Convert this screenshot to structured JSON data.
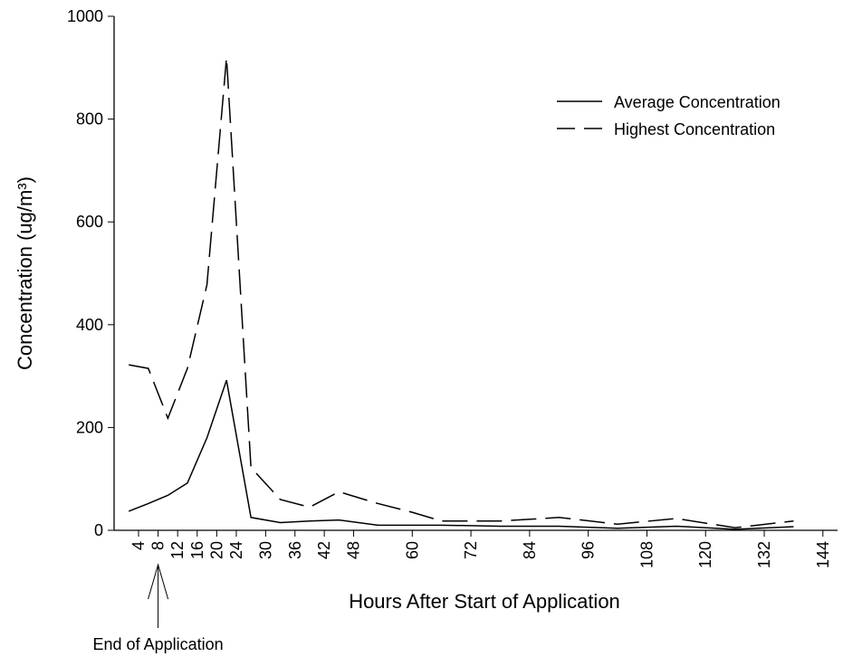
{
  "chart_data": {
    "type": "line",
    "x_label": "Hours After Start of Application",
    "y_label": "Concentration (ug/m³)",
    "x": [
      2,
      6,
      10,
      14,
      18,
      22,
      27,
      33,
      39,
      45,
      53,
      60,
      66,
      78,
      90,
      102,
      114,
      126,
      138
    ],
    "series": [
      {
        "name": "Average Concentration",
        "color": "#000000",
        "style": "solid",
        "values": [
          37,
          52,
          68,
          92,
          180,
          292,
          25,
          15,
          18,
          20,
          10,
          10,
          10,
          8,
          8,
          4,
          8,
          2,
          7
        ]
      },
      {
        "name": "Highest Concentration",
        "color": "#000000",
        "style": "dashed",
        "values": [
          322,
          315,
          218,
          315,
          478,
          920,
          122,
          60,
          45,
          75,
          52,
          35,
          18,
          18,
          25,
          12,
          23,
          5,
          18
        ]
      }
    ],
    "xlim": [
      -1,
      147
    ],
    "ylim": [
      0,
      1000
    ],
    "xticks": [
      4,
      8,
      12,
      16,
      20,
      24,
      30,
      36,
      42,
      48,
      60,
      72,
      84,
      96,
      108,
      120,
      132,
      144
    ],
    "yticks": [
      0,
      200,
      400,
      600,
      800,
      1000
    ],
    "legend": "top-right",
    "annotation": {
      "text": "End of Application",
      "x": 8
    }
  }
}
